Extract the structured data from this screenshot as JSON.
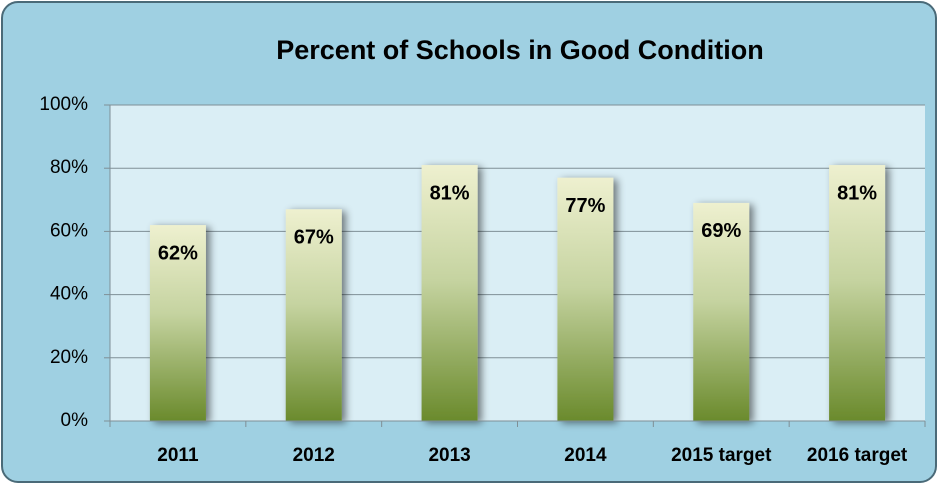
{
  "chart_data": {
    "type": "bar",
    "title": "Percent of Schools in Good Condition",
    "categories": [
      "2011",
      "2012",
      "2013",
      "2014",
      "2015 target",
      "2016 target"
    ],
    "values": [
      62,
      67,
      81,
      77,
      69,
      81
    ],
    "value_labels": [
      "62%",
      "67%",
      "81%",
      "77%",
      "69%",
      "81%"
    ],
    "color": "#6f8f30",
    "ylim": [
      0,
      100
    ],
    "yticks": [
      {
        "value": 0,
        "label": "0%"
      },
      {
        "value": 20,
        "label": "20%"
      },
      {
        "value": 40,
        "label": "40%"
      },
      {
        "value": 60,
        "label": "60%"
      },
      {
        "value": 80,
        "label": "80%"
      },
      {
        "value": 100,
        "label": "100%"
      }
    ],
    "grid": true
  }
}
